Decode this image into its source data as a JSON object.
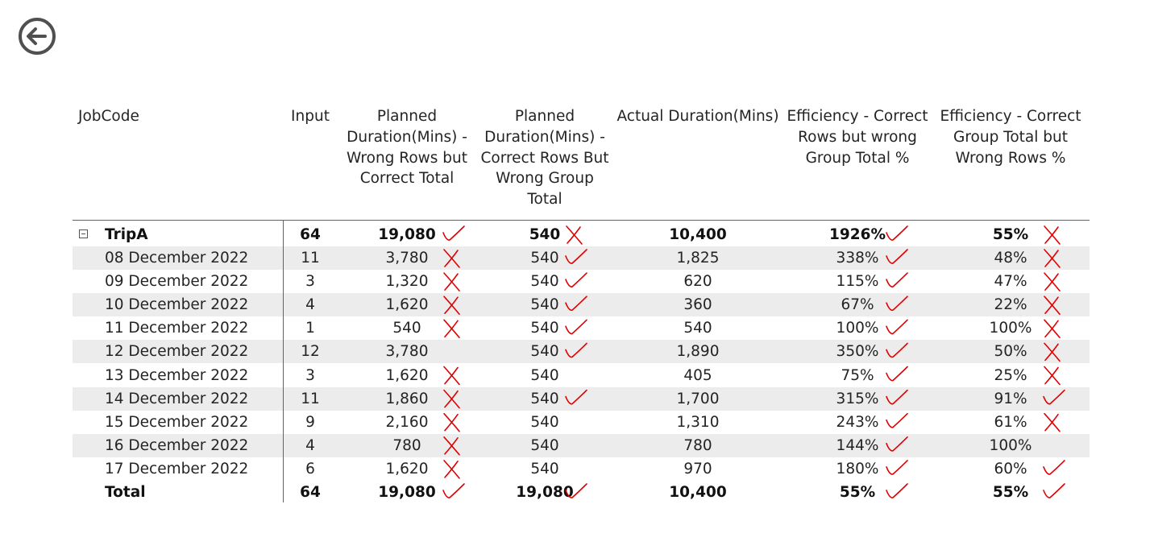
{
  "nav": {
    "back_icon": "arrow-left-circle-icon"
  },
  "colors": {
    "band": "#ececec",
    "separator": "#2f6fa8",
    "annotation_ink": "#e00000"
  },
  "columns": [
    "JobCode",
    "Input",
    "Planned Duration(Mins) - Wrong Rows but Correct Total",
    "Planned Duration(Mins) - Correct Rows But Wrong Group Total",
    "Actual Duration(Mins)",
    "Efficiency - Correct Rows but wrong Group Total %",
    "Efficiency - Correct Group Total but Wrong Rows %"
  ],
  "group_row": {
    "expander_icon": "collapse-minus-icon",
    "cells": [
      "TripA",
      "64",
      "19,080",
      "540",
      "10,400",
      "1926%",
      "55%"
    ]
  },
  "rows": [
    [
      "08 December 2022",
      "11",
      "3,780",
      "540",
      "1,825",
      "338%",
      "48%"
    ],
    [
      "09 December 2022",
      "3",
      "1,320",
      "540",
      "620",
      "115%",
      "47%"
    ],
    [
      "10 December 2022",
      "4",
      "1,620",
      "540",
      "360",
      "67%",
      "22%"
    ],
    [
      "11 December 2022",
      "1",
      "540",
      "540",
      "540",
      "100%",
      "100%"
    ],
    [
      "12 December 2022",
      "12",
      "3,780",
      "540",
      "1,890",
      "350%",
      "50%"
    ],
    [
      "13 December 2022",
      "3",
      "1,620",
      "540",
      "405",
      "75%",
      "25%"
    ],
    [
      "14 December 2022",
      "11",
      "1,860",
      "540",
      "1,700",
      "315%",
      "91%"
    ],
    [
      "15 December 2022",
      "9",
      "2,160",
      "540",
      "1,310",
      "243%",
      "61%"
    ],
    [
      "16 December 2022",
      "4",
      "780",
      "540",
      "780",
      "144%",
      "100%"
    ],
    [
      "17 December 2022",
      "6",
      "1,620",
      "540",
      "970",
      "180%",
      "60%"
    ]
  ],
  "total_row": [
    "Total",
    "64",
    "19,080",
    "19,080",
    "10,400",
    "55%",
    "55%"
  ],
  "annotations": {
    "type": "handwritten-marks",
    "marks": [
      [
        "check",
        "cross",
        "check",
        "cross"
      ],
      [
        "cross",
        "check",
        "check",
        "cross"
      ],
      [
        "cross",
        "check",
        "check",
        "cross"
      ],
      [
        "cross",
        "check",
        "check",
        "cross"
      ],
      [
        "cross",
        "check",
        "check",
        "cross"
      ],
      [
        "none",
        "check",
        "check",
        "cross"
      ],
      [
        "cross",
        "none",
        "check",
        "cross"
      ],
      [
        "cross",
        "check",
        "check",
        "check"
      ],
      [
        "cross",
        "none",
        "check",
        "cross"
      ],
      [
        "cross",
        "none",
        "check",
        "none"
      ],
      [
        "cross",
        "none",
        "check",
        "check"
      ],
      [
        "check",
        "check",
        "check",
        "check"
      ]
    ]
  }
}
